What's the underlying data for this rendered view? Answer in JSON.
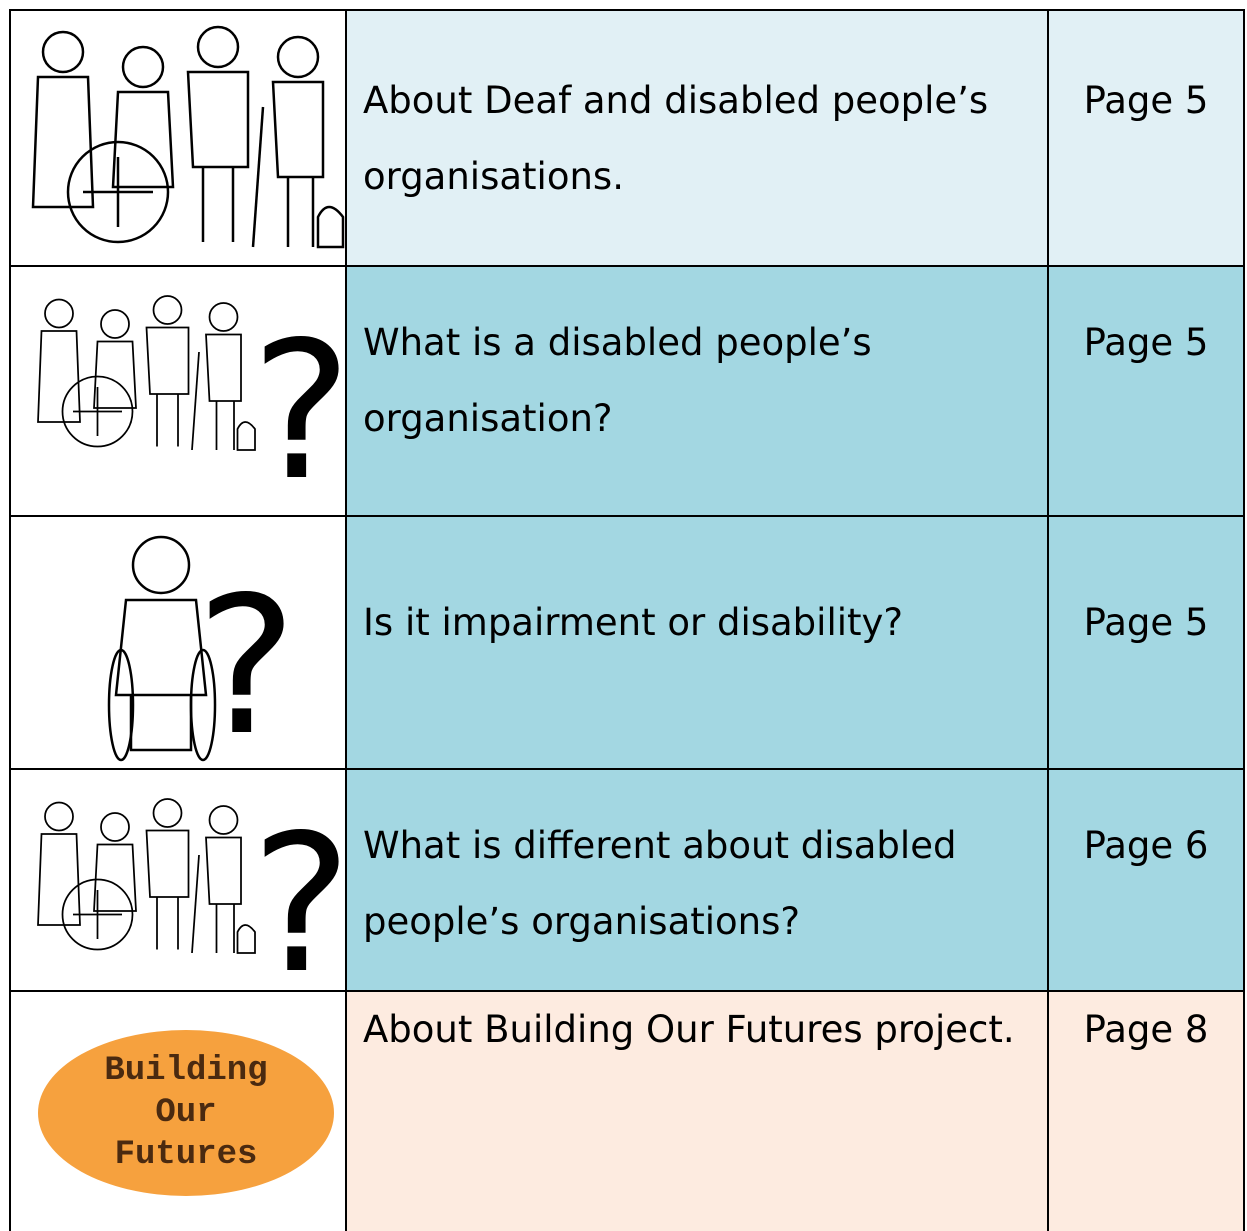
{
  "table": {
    "rows": [
      {
        "text": [
          "About Deaf and disabled people’s",
          "organisations."
        ],
        "page": "Page 5"
      },
      {
        "text": [
          "What is a disabled people’s",
          "organisation?"
        ],
        "page": "Page 5",
        "mark": "?"
      },
      {
        "text": [
          "Is it impairment or disability?"
        ],
        "page": "Page 5",
        "mark": "?"
      },
      {
        "text": [
          "What is different about disabled",
          "people’s organisations?"
        ],
        "page": "Page 6",
        "mark": "?"
      },
      {
        "text": [
          "About Building Our Futures project."
        ],
        "page": "Page 8",
        "logo": [
          "Building",
          "Our",
          "Futures"
        ]
      }
    ]
  }
}
